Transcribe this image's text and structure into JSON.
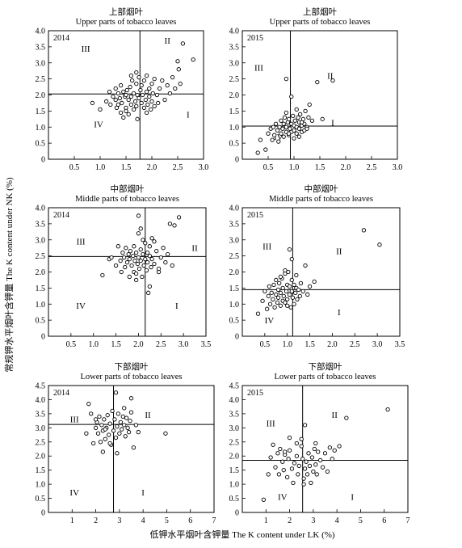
{
  "figure": {
    "xlabel": "低钾水平烟叶含钾量 The K content under LK (%)",
    "ylabel": "常规钾水平烟叶含钾量 The K content under NK (%)"
  },
  "chart_data": [
    {
      "type": "scatter",
      "title_cn": "上部烟叶",
      "title_en": "Upper parts of tobacco leaves",
      "year": "2014",
      "xlim": [
        0,
        3.0
      ],
      "ylim": [
        0,
        4.0
      ],
      "xticks": [
        "0.5",
        "1.0",
        "1.5",
        "2.0",
        "2.5",
        "3.0"
      ],
      "yticks": [
        "0",
        "0.5",
        "1.0",
        "1.5",
        "2.0",
        "2.5",
        "3.0",
        "3.5",
        "4.0"
      ],
      "vline": 1.77,
      "hline": 2.03,
      "quadrants": {
        "I": [
          2.7,
          1.3
        ],
        "II": [
          2.3,
          3.6
        ],
        "III": [
          0.72,
          3.35
        ],
        "IV": [
          0.97,
          1.0
        ]
      },
      "x": [
        0.85,
        1.0,
        1.12,
        1.18,
        1.2,
        1.25,
        1.3,
        1.3,
        1.32,
        1.35,
        1.38,
        1.4,
        1.4,
        1.42,
        1.45,
        1.45,
        1.48,
        1.5,
        1.5,
        1.52,
        1.55,
        1.55,
        1.58,
        1.6,
        1.6,
        1.62,
        1.65,
        1.65,
        1.68,
        1.7,
        1.7,
        1.72,
        1.72,
        1.75,
        1.75,
        1.78,
        1.8,
        1.8,
        1.82,
        1.85,
        1.85,
        1.88,
        1.9,
        1.9,
        1.92,
        1.95,
        1.95,
        1.98,
        2.0,
        2.0,
        2.02,
        2.05,
        2.05,
        2.1,
        2.12,
        2.15,
        2.2,
        2.25,
        2.3,
        2.35,
        2.4,
        2.45,
        2.5,
        2.52,
        2.55,
        2.6,
        2.8,
        1.6,
        1.7,
        1.5,
        1.35,
        1.9
      ],
      "y": [
        1.75,
        1.55,
        1.8,
        2.1,
        1.7,
        1.95,
        1.85,
        2.2,
        1.6,
        2.05,
        1.9,
        1.45,
        2.3,
        1.75,
        2.1,
        1.3,
        1.95,
        1.6,
        2.0,
        2.15,
        1.85,
        1.4,
        2.25,
        1.7,
        1.95,
        2.45,
        1.55,
        2.05,
        1.8,
        2.35,
        1.65,
        2.0,
        1.25,
        2.55,
        1.9,
        2.15,
        1.75,
        2.3,
        2.0,
        1.6,
        2.45,
        1.85,
        2.1,
        2.6,
        1.7,
        2.2,
        1.95,
        1.55,
        2.35,
        1.8,
        2.05,
        1.65,
        2.5,
        2.0,
        1.75,
        2.2,
        2.45,
        1.85,
        2.3,
        2.05,
        2.55,
        2.2,
        3.05,
        2.8,
        2.35,
        3.6,
        3.1,
        2.6,
        2.7,
        1.5,
        1.7,
        1.45
      ]
    },
    {
      "type": "scatter",
      "title_cn": "上部烟叶",
      "title_en": "Upper parts of tobacco leaves",
      "year": "2015",
      "xlim": [
        0,
        3.0
      ],
      "ylim": [
        0,
        4.0
      ],
      "xticks": [
        "0.5",
        "1.0",
        "1.5",
        "2.0",
        "2.5",
        "3.0"
      ],
      "yticks": [
        "0",
        "0.5",
        "1.0",
        "1.5",
        "2.0",
        "2.5",
        "3.0",
        "3.5",
        "4.0"
      ],
      "vline": 0.93,
      "hline": 1.03,
      "quadrants": {
        "I": [
          1.75,
          1.05
        ],
        "II": [
          1.7,
          2.5
        ],
        "III": [
          0.32,
          2.75
        ],
        "IV": [
          0.7,
          0.6
        ]
      },
      "x": [
        0.3,
        0.35,
        0.45,
        0.5,
        0.55,
        0.58,
        0.6,
        0.62,
        0.65,
        0.68,
        0.7,
        0.72,
        0.75,
        0.75,
        0.78,
        0.8,
        0.8,
        0.82,
        0.85,
        0.85,
        0.88,
        0.9,
        0.9,
        0.92,
        0.95,
        0.95,
        0.98,
        1.0,
        1.0,
        1.02,
        1.05,
        1.05,
        1.08,
        1.1,
        1.1,
        1.12,
        1.15,
        1.15,
        1.18,
        1.2,
        1.2,
        1.22,
        1.25,
        1.28,
        1.3,
        1.35,
        1.1,
        1.0,
        0.9,
        0.85,
        1.05,
        1.15,
        1.25,
        1.45,
        1.55,
        1.75,
        0.85,
        0.95
      ],
      "y": [
        0.2,
        0.6,
        0.3,
        0.8,
        0.95,
        0.6,
        1.0,
        0.75,
        1.1,
        0.9,
        0.55,
        1.0,
        0.8,
        1.2,
        0.95,
        0.7,
        1.1,
        1.3,
        0.85,
        1.0,
        1.15,
        0.75,
        1.25,
        0.95,
        0.85,
        1.1,
        1.35,
        0.9,
        1.05,
        1.2,
        0.8,
        1.0,
        1.3,
        0.95,
        1.15,
        1.4,
        0.85,
        1.05,
        1.25,
        0.9,
        1.1,
        1.5,
        1.0,
        1.3,
        1.7,
        1.2,
        0.7,
        0.65,
        0.8,
        1.45,
        1.55,
        1.15,
        0.95,
        2.4,
        1.25,
        2.45,
        2.5,
        1.95
      ]
    },
    {
      "type": "scatter",
      "title_cn": "中部烟叶",
      "title_en": "Middle parts of tobacco leaves",
      "year": "2014",
      "xlim": [
        0,
        3.5
      ],
      "ylim": [
        0,
        4.0
      ],
      "xticks": [
        "0.5",
        "1.0",
        "1.5",
        "2.0",
        "2.5",
        "3.0",
        "3.5"
      ],
      "yticks": [
        "0",
        "0.5",
        "1.0",
        "1.5",
        "2.0",
        "2.5",
        "3.0",
        "3.5",
        "4.0"
      ],
      "vline": 2.15,
      "hline": 2.48,
      "quadrants": {
        "I": [
          2.85,
          0.85
        ],
        "II": [
          3.25,
          2.65
        ],
        "III": [
          0.72,
          2.85
        ],
        "IV": [
          0.72,
          0.85
        ]
      },
      "x": [
        1.2,
        1.35,
        1.4,
        1.5,
        1.55,
        1.6,
        1.62,
        1.65,
        1.68,
        1.7,
        1.72,
        1.75,
        1.78,
        1.8,
        1.8,
        1.82,
        1.85,
        1.88,
        1.9,
        1.9,
        1.92,
        1.95,
        1.95,
        1.98,
        2.0,
        2.0,
        2.02,
        2.05,
        2.05,
        2.08,
        2.1,
        2.1,
        2.12,
        2.15,
        2.15,
        2.18,
        2.2,
        2.2,
        2.22,
        2.25,
        2.25,
        2.28,
        2.3,
        2.3,
        2.35,
        2.4,
        2.45,
        2.5,
        2.55,
        2.6,
        2.65,
        2.7,
        2.75,
        2.8,
        2.9,
        2.0,
        2.05,
        1.95,
        2.25,
        2.35,
        2.45
      ],
      "y": [
        1.9,
        2.4,
        2.45,
        2.2,
        2.8,
        2.35,
        2.0,
        2.6,
        2.45,
        2.15,
        2.75,
        2.3,
        2.55,
        1.85,
        2.4,
        2.65,
        2.2,
        2.5,
        2.0,
        2.8,
        2.35,
        1.95,
        2.6,
        2.25,
        2.45,
        3.2,
        2.1,
        2.7,
        2.35,
        1.85,
        2.55,
        3.0,
        2.2,
        2.4,
        2.9,
        2.05,
        2.6,
        2.3,
        1.35,
        2.5,
        2.8,
        2.15,
        2.4,
        3.05,
        2.25,
        2.65,
        2.0,
        2.45,
        2.75,
        2.3,
        2.55,
        3.5,
        2.2,
        3.45,
        3.7,
        3.75,
        3.35,
        1.75,
        1.55,
        2.95,
        2.1
      ]
    },
    {
      "type": "scatter",
      "title_cn": "中部烟叶",
      "title_en": "Middle parts of tobacco leaves",
      "year": "2015",
      "xlim": [
        0,
        3.5
      ],
      "ylim": [
        0,
        4.0
      ],
      "xticks": [
        "0.5",
        "1.0",
        "1.5",
        "2.0",
        "2.5",
        "3.0",
        "3.5"
      ],
      "yticks": [
        "0",
        "0.5",
        "1.0",
        "1.5",
        "2.0",
        "2.5",
        "3.0",
        "3.5",
        "4.0"
      ],
      "vline": 1.12,
      "hline": 1.45,
      "quadrants": {
        "I": [
          2.15,
          0.65
        ],
        "II": [
          2.15,
          2.55
        ],
        "III": [
          0.55,
          2.7
        ],
        "IV": [
          0.6,
          0.4
        ]
      },
      "x": [
        0.35,
        0.45,
        0.5,
        0.55,
        0.58,
        0.6,
        0.62,
        0.65,
        0.68,
        0.7,
        0.72,
        0.75,
        0.75,
        0.78,
        0.8,
        0.8,
        0.82,
        0.85,
        0.85,
        0.88,
        0.9,
        0.9,
        0.92,
        0.95,
        0.95,
        0.98,
        1.0,
        1.0,
        1.02,
        1.05,
        1.05,
        1.08,
        1.1,
        1.1,
        1.12,
        1.15,
        1.15,
        1.18,
        1.2,
        1.2,
        1.22,
        1.25,
        1.28,
        1.3,
        1.35,
        1.4,
        1.45,
        1.5,
        1.6,
        1.05,
        1.1,
        0.95,
        0.85,
        1.0,
        2.7,
        3.05
      ],
      "y": [
        0.7,
        1.1,
        1.4,
        0.85,
        1.25,
        1.55,
        1.0,
        1.35,
        1.15,
        1.6,
        0.9,
        1.3,
        1.75,
        1.05,
        1.45,
        1.2,
        1.65,
        0.95,
        1.35,
        1.8,
        1.1,
        1.5,
        1.25,
        1.95,
        1.05,
        1.4,
        1.6,
        1.15,
        2.0,
        1.3,
        1.55,
        0.9,
        1.4,
        1.75,
        1.2,
        1.6,
        1.0,
        1.35,
        1.5,
        1.9,
        1.15,
        1.45,
        1.25,
        1.65,
        1.4,
        2.2,
        1.3,
        1.55,
        1.7,
        2.7,
        2.4,
        2.05,
        1.85,
        0.95,
        3.3,
        2.85
      ]
    },
    {
      "type": "scatter",
      "title_cn": "下部烟叶",
      "title_en": "Lower parts of tobacco leaves",
      "year": "2014",
      "xlim": [
        0,
        7
      ],
      "ylim": [
        0,
        4.5
      ],
      "xticks": [
        "1",
        "2",
        "3",
        "4",
        "5",
        "6",
        "7"
      ],
      "yticks": [
        "0",
        "0.5",
        "1.0",
        "1.5",
        "2.0",
        "2.5",
        "3.0",
        "3.5",
        "4.0",
        "4.5"
      ],
      "vline": 2.75,
      "hline": 3.12,
      "quadrants": {
        "I": [
          4.0,
          0.6
        ],
        "II": [
          4.2,
          3.35
        ],
        "III": [
          1.1,
          3.2
        ],
        "IV": [
          1.1,
          0.6
        ]
      },
      "x": [
        1.6,
        1.7,
        1.8,
        1.9,
        2.0,
        2.05,
        2.1,
        2.15,
        2.2,
        2.25,
        2.3,
        2.35,
        2.4,
        2.45,
        2.5,
        2.55,
        2.6,
        2.65,
        2.7,
        2.75,
        2.8,
        2.85,
        2.9,
        2.95,
        3.0,
        3.05,
        3.1,
        3.15,
        3.2,
        3.25,
        3.3,
        3.35,
        3.4,
        3.45,
        3.5,
        3.6,
        3.7,
        3.8,
        2.0,
        2.3,
        2.6,
        2.9,
        3.2,
        3.5,
        4.95,
        2.85,
        2.4
      ],
      "y": [
        2.8,
        3.85,
        3.5,
        2.45,
        3.0,
        3.2,
        2.8,
        3.4,
        2.5,
        3.1,
        2.9,
        3.3,
        2.6,
        3.0,
        3.45,
        2.75,
        3.15,
        2.4,
        3.6,
        2.9,
        3.3,
        2.65,
        3.05,
        3.5,
        2.8,
        3.2,
        2.95,
        3.4,
        3.1,
        2.7,
        3.35,
        3.0,
        2.85,
        3.25,
        3.55,
        2.3,
        3.1,
        2.85,
        3.3,
        2.15,
        2.45,
        2.1,
        3.7,
        4.05,
        2.8,
        4.25,
        2.95
      ]
    },
    {
      "type": "scatter",
      "title_cn": "下部烟叶",
      "title_en": "Lower parts of tobacco leaves",
      "year": "2015",
      "xlim": [
        0,
        7
      ],
      "ylim": [
        0,
        4.5
      ],
      "xticks": [
        "1",
        "2",
        "3",
        "4",
        "5",
        "6",
        "7"
      ],
      "yticks": [
        "0",
        "0.5",
        "1.0",
        "1.5",
        "2.0",
        "2.5",
        "3.0",
        "3.5",
        "4.0",
        "4.5"
      ],
      "vline": 2.55,
      "hline": 1.85,
      "quadrants": {
        "I": [
          4.65,
          0.45
        ],
        "II": [
          3.9,
          3.35
        ],
        "III": [
          1.2,
          3.05
        ],
        "IV": [
          1.7,
          0.45
        ]
      },
      "x": [
        0.9,
        1.1,
        1.2,
        1.3,
        1.4,
        1.5,
        1.55,
        1.6,
        1.7,
        1.75,
        1.8,
        1.9,
        1.95,
        2.0,
        2.1,
        2.15,
        2.2,
        2.3,
        2.35,
        2.4,
        2.5,
        2.55,
        2.6,
        2.65,
        2.7,
        2.75,
        2.8,
        2.85,
        2.9,
        2.95,
        3.0,
        3.05,
        3.1,
        3.15,
        3.2,
        3.3,
        3.4,
        3.5,
        3.6,
        3.7,
        3.8,
        3.9,
        4.1,
        2.3,
        2.5,
        2.65,
        2.0,
        1.8,
        4.4,
        6.15,
        2.6,
        3.1
      ],
      "y": [
        0.45,
        1.35,
        1.95,
        2.4,
        1.6,
        2.1,
        1.35,
        2.25,
        1.8,
        1.5,
        2.05,
        1.25,
        1.9,
        2.2,
        1.55,
        1.05,
        1.75,
        2.0,
        1.35,
        1.65,
        2.35,
        1.9,
        1.2,
        1.55,
        1.8,
        1.35,
        2.1,
        1.65,
        1.05,
        1.95,
        1.45,
        2.25,
        1.7,
        1.35,
        2.15,
        1.85,
        1.6,
        2.1,
        1.45,
        2.3,
        1.9,
        2.2,
        2.35,
        2.45,
        2.6,
        3.1,
        2.65,
        2.15,
        3.35,
        3.65,
        1.0,
        2.45
      ]
    }
  ]
}
